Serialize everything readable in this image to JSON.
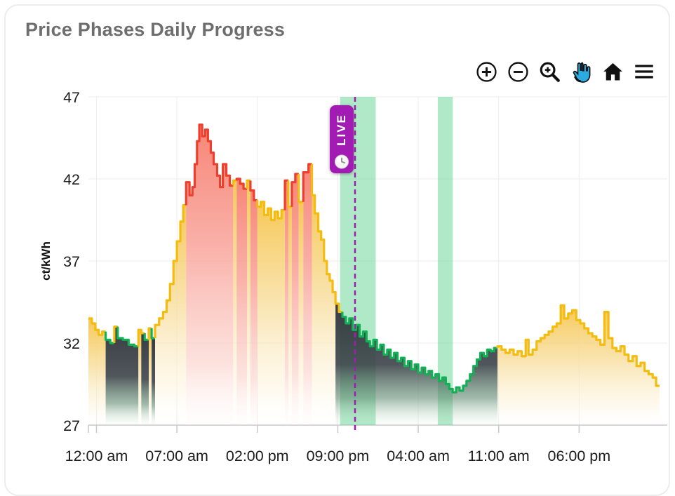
{
  "card": {
    "title": "Price Phases Daily Progress"
  },
  "toolbar": {
    "buttons": [
      {
        "id": "zoom-in",
        "icon": "zoom-in-circle-icon",
        "active": false
      },
      {
        "id": "zoom-out",
        "icon": "zoom-out-circle-icon",
        "active": false
      },
      {
        "id": "box-zoom",
        "icon": "magnifier-plus-icon",
        "active": false
      },
      {
        "id": "pan",
        "icon": "hand-icon",
        "active": true,
        "active_color": "#2BABDF"
      },
      {
        "id": "reset",
        "icon": "home-icon",
        "active": false
      },
      {
        "id": "menu",
        "icon": "menu-icon",
        "active": false
      }
    ]
  },
  "live": {
    "label": "LIVE",
    "time_hours": 22.5,
    "color": "#A21CB4",
    "icon": "clock-icon"
  },
  "chart_data": {
    "type": "step-area",
    "title": "Price Phases Daily Progress",
    "ylabel": "ct/kWh",
    "ylim": [
      27,
      47
    ],
    "yticks": [
      47,
      42,
      37,
      32,
      27
    ],
    "xticks": [
      {
        "t": 0,
        "label": "12:00 am"
      },
      {
        "t": 7,
        "label": "07:00 am"
      },
      {
        "t": 14,
        "label": "02:00 pm"
      },
      {
        "t": 21,
        "label": "09:00 pm"
      },
      {
        "t": 28,
        "label": "04:00 am"
      },
      {
        "t": 35,
        "label": "11:00 am"
      },
      {
        "t": 42,
        "label": "06:00 pm"
      }
    ],
    "x_range": [
      -0.7,
      49.0
    ],
    "grid": true,
    "phase_colors": {
      "normal": "#F4BC0E",
      "expensive": "#EE3E2C",
      "cheap": "#13B155"
    },
    "highlight_bands": [
      {
        "start": 21.2,
        "end": 24.3
      },
      {
        "start": 29.7,
        "end": 31.0
      }
    ],
    "point_format": "[hours_from_first_midnight, price_ct_per_kWh, line_phase Y=normal R=expensive G=cheap, fill y=yellow r=red d=dark]",
    "points": [
      [
        -0.7,
        33.5,
        "Y",
        "y"
      ],
      [
        -0.4,
        33.2,
        "Y",
        "y"
      ],
      [
        -0.1,
        32.8,
        "Y",
        "y"
      ],
      [
        0.2,
        32.5,
        "Y",
        "y"
      ],
      [
        0.5,
        32.7,
        "Y",
        "y"
      ],
      [
        0.8,
        32.2,
        "G",
        "d"
      ],
      [
        1.2,
        32.0,
        "G",
        "d"
      ],
      [
        1.55,
        33.0,
        "Y",
        "d"
      ],
      [
        1.85,
        32.3,
        "G",
        "d"
      ],
      [
        2.3,
        32.2,
        "G",
        "d"
      ],
      [
        2.8,
        31.9,
        "G",
        "d"
      ],
      [
        3.3,
        31.8,
        "G",
        "d"
      ],
      [
        3.65,
        32.8,
        "Y",
        "y"
      ],
      [
        3.9,
        32.6,
        "Y",
        "d"
      ],
      [
        4.2,
        32.2,
        "G",
        "d"
      ],
      [
        4.55,
        32.9,
        "Y",
        "y"
      ],
      [
        4.8,
        32.3,
        "G",
        "d"
      ],
      [
        5.1,
        33.1,
        "Y",
        "y"
      ],
      [
        5.45,
        33.5,
        "Y",
        "y"
      ],
      [
        5.8,
        33.9,
        "Y",
        "y"
      ],
      [
        6.1,
        34.6,
        "Y",
        "y"
      ],
      [
        6.4,
        35.6,
        "Y",
        "y"
      ],
      [
        6.7,
        37.0,
        "Y",
        "y"
      ],
      [
        7.0,
        38.2,
        "Y",
        "y"
      ],
      [
        7.3,
        39.4,
        "Y",
        "y"
      ],
      [
        7.55,
        40.4,
        "Y",
        "y"
      ],
      [
        7.8,
        41.8,
        "R",
        "r"
      ],
      [
        8.1,
        41.0,
        "R",
        "r"
      ],
      [
        8.35,
        41.5,
        "R",
        "r"
      ],
      [
        8.55,
        42.9,
        "R",
        "r"
      ],
      [
        8.75,
        44.3,
        "R",
        "r"
      ],
      [
        8.95,
        45.3,
        "R",
        "r"
      ],
      [
        9.2,
        44.6,
        "R",
        "r"
      ],
      [
        9.45,
        45.0,
        "R",
        "r"
      ],
      [
        9.7,
        44.3,
        "R",
        "r"
      ],
      [
        9.95,
        43.6,
        "R",
        "r"
      ],
      [
        10.2,
        42.9,
        "R",
        "r"
      ],
      [
        10.5,
        42.2,
        "R",
        "r"
      ],
      [
        10.75,
        41.5,
        "R",
        "r"
      ],
      [
        11.0,
        42.9,
        "R",
        "r"
      ],
      [
        11.3,
        42.2,
        "R",
        "r"
      ],
      [
        11.6,
        41.6,
        "R",
        "r"
      ],
      [
        11.9,
        41.9,
        "Y",
        "y"
      ],
      [
        12.2,
        42.0,
        "R",
        "r"
      ],
      [
        12.5,
        41.7,
        "R",
        "r"
      ],
      [
        12.8,
        41.4,
        "R",
        "r"
      ],
      [
        13.1,
        41.9,
        "Y",
        "y"
      ],
      [
        13.4,
        41.3,
        "R",
        "r"
      ],
      [
        13.7,
        40.7,
        "R",
        "r"
      ],
      [
        14.0,
        40.3,
        "Y",
        "y"
      ],
      [
        14.3,
        40.6,
        "Y",
        "y"
      ],
      [
        14.6,
        39.8,
        "Y",
        "y"
      ],
      [
        14.9,
        40.2,
        "Y",
        "y"
      ],
      [
        15.2,
        39.5,
        "Y",
        "y"
      ],
      [
        15.5,
        40.0,
        "Y",
        "y"
      ],
      [
        15.8,
        39.6,
        "Y",
        "y"
      ],
      [
        16.1,
        40.1,
        "Y",
        "y"
      ],
      [
        16.4,
        41.9,
        "R",
        "r"
      ],
      [
        16.7,
        40.3,
        "Y",
        "y"
      ],
      [
        17.0,
        41.8,
        "R",
        "r"
      ],
      [
        17.3,
        42.3,
        "R",
        "r"
      ],
      [
        17.6,
        40.6,
        "Y",
        "y"
      ],
      [
        18.0,
        42.4,
        "R",
        "r"
      ],
      [
        18.45,
        42.9,
        "R",
        "r"
      ],
      [
        18.75,
        41.0,
        "Y",
        "y"
      ],
      [
        19.0,
        39.9,
        "Y",
        "y"
      ],
      [
        19.3,
        38.8,
        "Y",
        "y"
      ],
      [
        19.55,
        38.3,
        "Y",
        "y"
      ],
      [
        19.8,
        37.0,
        "Y",
        "y"
      ],
      [
        20.05,
        36.2,
        "Y",
        "y"
      ],
      [
        20.3,
        35.8,
        "Y",
        "y"
      ],
      [
        20.55,
        35.1,
        "Y",
        "y"
      ],
      [
        20.8,
        34.4,
        "Y",
        "d"
      ],
      [
        21.1,
        33.9,
        "Y",
        "d"
      ],
      [
        21.4,
        33.6,
        "G",
        "d"
      ],
      [
        21.7,
        33.2,
        "G",
        "d"
      ],
      [
        22.0,
        33.5,
        "G",
        "d"
      ],
      [
        22.3,
        32.8,
        "G",
        "d"
      ],
      [
        22.6,
        33.1,
        "G",
        "d"
      ],
      [
        22.9,
        32.4,
        "G",
        "d"
      ],
      [
        23.2,
        32.7,
        "G",
        "d"
      ],
      [
        23.5,
        32.1,
        "G",
        "d"
      ],
      [
        23.8,
        31.8,
        "G",
        "d"
      ],
      [
        24.1,
        32.2,
        "G",
        "d"
      ],
      [
        24.4,
        31.6,
        "G",
        "d"
      ],
      [
        24.7,
        31.9,
        "G",
        "d"
      ],
      [
        25.0,
        31.3,
        "G",
        "d"
      ],
      [
        25.3,
        31.6,
        "G",
        "d"
      ],
      [
        25.6,
        31.1,
        "G",
        "d"
      ],
      [
        25.9,
        31.4,
        "G",
        "d"
      ],
      [
        26.2,
        30.9,
        "G",
        "d"
      ],
      [
        26.5,
        31.1,
        "G",
        "d"
      ],
      [
        26.8,
        30.6,
        "G",
        "d"
      ],
      [
        27.1,
        30.9,
        "G",
        "d"
      ],
      [
        27.4,
        30.4,
        "G",
        "d"
      ],
      [
        27.7,
        30.7,
        "G",
        "d"
      ],
      [
        28.0,
        30.2,
        "G",
        "d"
      ],
      [
        28.3,
        30.5,
        "G",
        "d"
      ],
      [
        28.6,
        30.1,
        "G",
        "d"
      ],
      [
        28.9,
        30.3,
        "G",
        "d"
      ],
      [
        29.2,
        29.9,
        "G",
        "d"
      ],
      [
        29.5,
        30.1,
        "G",
        "d"
      ],
      [
        29.8,
        29.7,
        "G",
        "d"
      ],
      [
        30.1,
        29.9,
        "G",
        "d"
      ],
      [
        30.4,
        29.5,
        "G",
        "d"
      ],
      [
        30.7,
        29.2,
        "G",
        "d"
      ],
      [
        31.0,
        29.0,
        "G",
        "d"
      ],
      [
        31.3,
        29.3,
        "G",
        "d"
      ],
      [
        31.6,
        29.1,
        "G",
        "d"
      ],
      [
        31.9,
        29.4,
        "G",
        "d"
      ],
      [
        32.2,
        29.7,
        "G",
        "d"
      ],
      [
        32.5,
        30.1,
        "G",
        "d"
      ],
      [
        32.8,
        30.6,
        "G",
        "d"
      ],
      [
        33.1,
        31.0,
        "G",
        "d"
      ],
      [
        33.4,
        31.4,
        "G",
        "d"
      ],
      [
        33.7,
        31.2,
        "G",
        "d"
      ],
      [
        34.0,
        31.6,
        "G",
        "d"
      ],
      [
        34.3,
        31.5,
        "G",
        "d"
      ],
      [
        34.6,
        31.7,
        "G",
        "d"
      ],
      [
        34.9,
        31.8,
        "Y",
        "y"
      ],
      [
        35.25,
        31.6,
        "Y",
        "y"
      ],
      [
        35.6,
        31.4,
        "Y",
        "y"
      ],
      [
        35.95,
        31.6,
        "Y",
        "y"
      ],
      [
        36.3,
        31.3,
        "Y",
        "y"
      ],
      [
        36.65,
        31.5,
        "Y",
        "y"
      ],
      [
        37.0,
        31.2,
        "Y",
        "y"
      ],
      [
        37.35,
        32.2,
        "Y",
        "y"
      ],
      [
        37.6,
        31.3,
        "Y",
        "y"
      ],
      [
        37.95,
        31.6,
        "Y",
        "y"
      ],
      [
        38.3,
        32.1,
        "Y",
        "y"
      ],
      [
        38.65,
        32.3,
        "Y",
        "y"
      ],
      [
        39.0,
        32.5,
        "Y",
        "y"
      ],
      [
        39.35,
        32.7,
        "Y",
        "y"
      ],
      [
        39.7,
        33.0,
        "Y",
        "y"
      ],
      [
        40.05,
        33.2,
        "Y",
        "y"
      ],
      [
        40.4,
        34.3,
        "Y",
        "y"
      ],
      [
        40.7,
        33.5,
        "Y",
        "y"
      ],
      [
        41.05,
        33.8,
        "Y",
        "y"
      ],
      [
        41.4,
        34.0,
        "Y",
        "y"
      ],
      [
        41.75,
        33.4,
        "Y",
        "y"
      ],
      [
        42.1,
        33.2,
        "Y",
        "y"
      ],
      [
        42.45,
        32.9,
        "Y",
        "y"
      ],
      [
        42.8,
        32.6,
        "Y",
        "y"
      ],
      [
        43.15,
        32.4,
        "Y",
        "y"
      ],
      [
        43.5,
        32.2,
        "Y",
        "y"
      ],
      [
        43.85,
        31.9,
        "Y",
        "y"
      ],
      [
        44.2,
        33.9,
        "Y",
        "y"
      ],
      [
        44.55,
        32.3,
        "Y",
        "y"
      ],
      [
        44.9,
        31.7,
        "Y",
        "y"
      ],
      [
        45.25,
        31.5,
        "Y",
        "y"
      ],
      [
        45.6,
        31.8,
        "Y",
        "y"
      ],
      [
        45.95,
        31.3,
        "Y",
        "y"
      ],
      [
        46.3,
        30.9,
        "Y",
        "y"
      ],
      [
        46.65,
        31.2,
        "Y",
        "y"
      ],
      [
        47.0,
        30.6,
        "Y",
        "y"
      ],
      [
        47.35,
        30.8,
        "Y",
        "y"
      ],
      [
        47.7,
        30.3,
        "Y",
        "y"
      ],
      [
        48.05,
        30.1,
        "Y",
        "y"
      ],
      [
        48.4,
        29.9,
        "Y",
        "y"
      ],
      [
        48.7,
        29.4,
        "Y",
        "y"
      ]
    ]
  }
}
